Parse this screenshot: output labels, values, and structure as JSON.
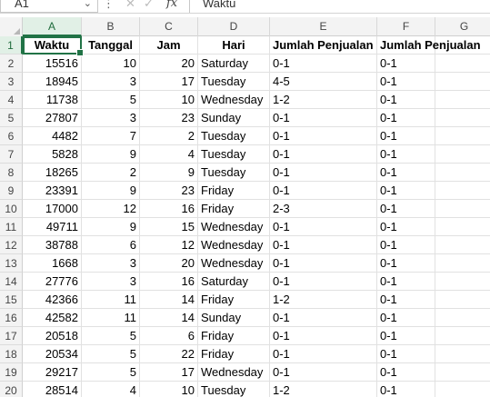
{
  "formula_bar": {
    "name_box": "A1",
    "more_glyph": "⋮",
    "cancel_glyph": "✕",
    "enter_glyph": "✓",
    "fx_label": "fx",
    "formula_value": "Waktu"
  },
  "column_headers": [
    "A",
    "B",
    "C",
    "D",
    "E",
    "F",
    "G"
  ],
  "header_row": {
    "row_number": "1",
    "cells": [
      "Waktu",
      "Tanggal",
      "Jam",
      "Hari",
      "Jumlah Penjualan",
      "Jumlah Penjualan"
    ]
  },
  "rows": [
    {
      "n": "2",
      "waktu": "15516",
      "tanggal": "10",
      "jam": "20",
      "hari": "Saturday",
      "e": "0-1",
      "f": "0-1"
    },
    {
      "n": "3",
      "waktu": "18945",
      "tanggal": "3",
      "jam": "17",
      "hari": "Tuesday",
      "e": "4-5",
      "f": "0-1"
    },
    {
      "n": "4",
      "waktu": "11738",
      "tanggal": "5",
      "jam": "10",
      "hari": "Wednesday",
      "e": "1-2",
      "f": "0-1"
    },
    {
      "n": "5",
      "waktu": "27807",
      "tanggal": "3",
      "jam": "23",
      "hari": "Sunday",
      "e": "0-1",
      "f": "0-1"
    },
    {
      "n": "6",
      "waktu": "4482",
      "tanggal": "7",
      "jam": "2",
      "hari": "Tuesday",
      "e": "0-1",
      "f": "0-1"
    },
    {
      "n": "7",
      "waktu": "5828",
      "tanggal": "9",
      "jam": "4",
      "hari": "Tuesday",
      "e": "0-1",
      "f": "0-1"
    },
    {
      "n": "8",
      "waktu": "18265",
      "tanggal": "2",
      "jam": "9",
      "hari": "Tuesday",
      "e": "0-1",
      "f": "0-1"
    },
    {
      "n": "9",
      "waktu": "23391",
      "tanggal": "9",
      "jam": "23",
      "hari": "Friday",
      "e": "0-1",
      "f": "0-1"
    },
    {
      "n": "10",
      "waktu": "17000",
      "tanggal": "12",
      "jam": "16",
      "hari": "Friday",
      "e": "2-3",
      "f": "0-1"
    },
    {
      "n": "11",
      "waktu": "49711",
      "tanggal": "9",
      "jam": "15",
      "hari": "Wednesday",
      "e": "0-1",
      "f": "0-1"
    },
    {
      "n": "12",
      "waktu": "38788",
      "tanggal": "6",
      "jam": "12",
      "hari": "Wednesday",
      "e": "0-1",
      "f": "0-1"
    },
    {
      "n": "13",
      "waktu": "1668",
      "tanggal": "3",
      "jam": "20",
      "hari": "Wednesday",
      "e": "0-1",
      "f": "0-1"
    },
    {
      "n": "14",
      "waktu": "27776",
      "tanggal": "3",
      "jam": "16",
      "hari": "Saturday",
      "e": "0-1",
      "f": "0-1"
    },
    {
      "n": "15",
      "waktu": "42366",
      "tanggal": "11",
      "jam": "14",
      "hari": "Friday",
      "e": "1-2",
      "f": "0-1"
    },
    {
      "n": "16",
      "waktu": "42582",
      "tanggal": "11",
      "jam": "14",
      "hari": "Sunday",
      "e": "0-1",
      "f": "0-1"
    },
    {
      "n": "17",
      "waktu": "20518",
      "tanggal": "5",
      "jam": "6",
      "hari": "Friday",
      "e": "0-1",
      "f": "0-1"
    },
    {
      "n": "18",
      "waktu": "20534",
      "tanggal": "5",
      "jam": "22",
      "hari": "Friday",
      "e": "0-1",
      "f": "0-1"
    },
    {
      "n": "19",
      "waktu": "29217",
      "tanggal": "5",
      "jam": "17",
      "hari": "Wednesday",
      "e": "0-1",
      "f": "0-1"
    },
    {
      "n": "20",
      "waktu": "28514",
      "tanggal": "4",
      "jam": "10",
      "hari": "Tuesday",
      "e": "1-2",
      "f": "0-1"
    }
  ],
  "colors": {
    "accent": "#217346",
    "header_bg": "#f3f3f3",
    "selected_header_bg": "#e1f0e6"
  }
}
